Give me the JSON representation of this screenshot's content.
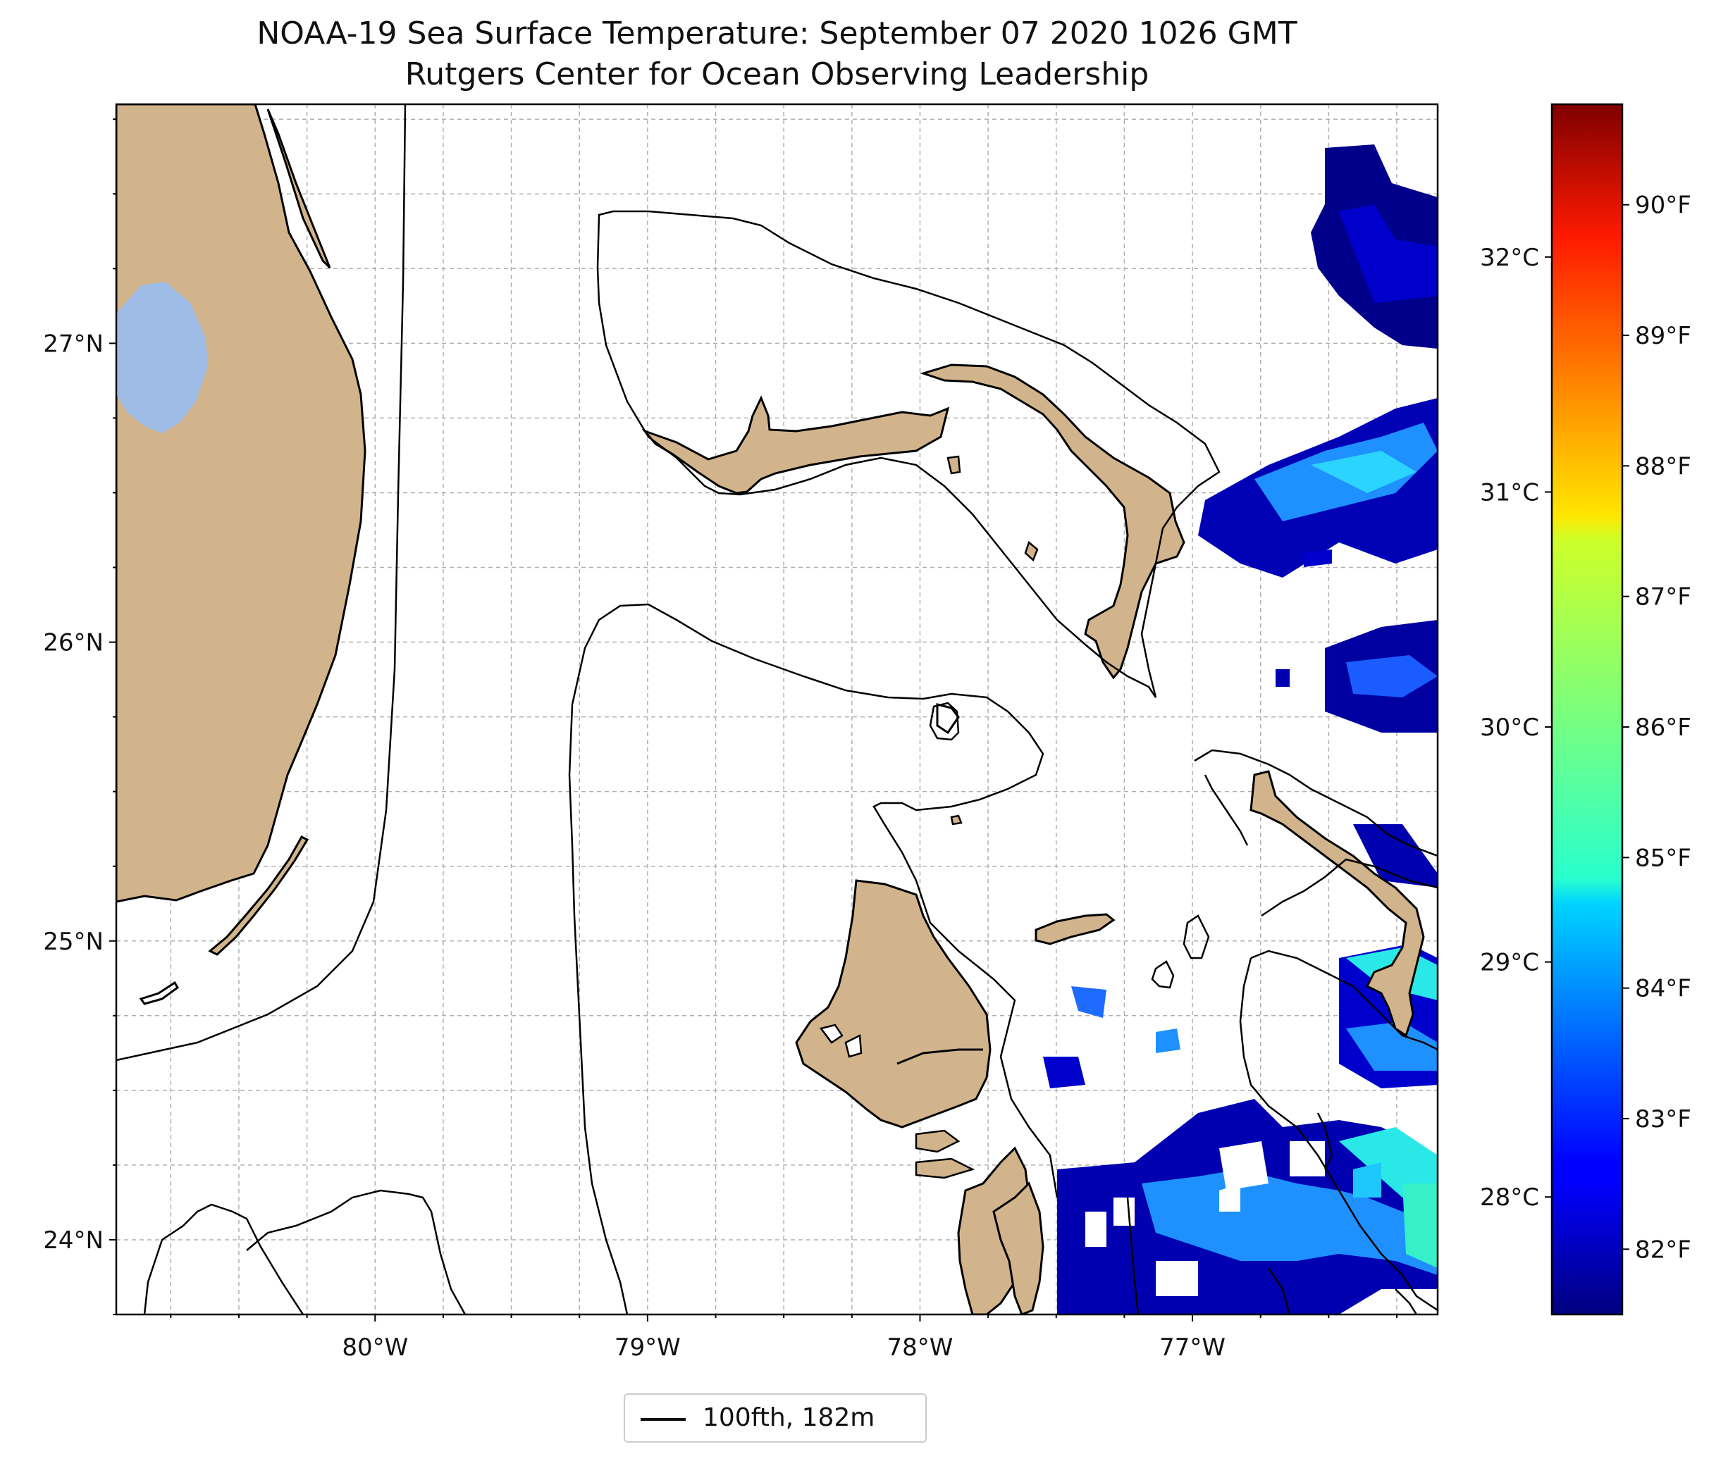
{
  "title_line1": "NOAA-19 Sea Surface Temperature: September 07 2020 1026 GMT",
  "title_line2": "Rutgers Center for Ocean Observing Leadership",
  "map": {
    "lon_range": [
      -80.95,
      -76.1
    ],
    "lat_range": [
      23.75,
      27.8
    ],
    "lat_ticks": [
      "27°N",
      "26°N",
      "25°N",
      "24°N"
    ],
    "lat_values": [
      27,
      26,
      25,
      24
    ],
    "lon_ticks": [
      "80°W",
      "79°W",
      "78°W",
      "77°W"
    ],
    "lon_values": [
      -80,
      -79,
      -78,
      -77
    ],
    "gridlines": true
  },
  "colorbar": {
    "celsius_ticks": [
      "32°C",
      "31°C",
      "30°C",
      "29°C",
      "28°C"
    ],
    "celsius_values": [
      32,
      31,
      30,
      29,
      28
    ],
    "fahrenheit_ticks": [
      "90°F",
      "89°F",
      "88°F",
      "87°F",
      "86°F",
      "85°F",
      "84°F",
      "83°F",
      "82°F"
    ],
    "fahrenheit_values": [
      90,
      89,
      88,
      87,
      86,
      85,
      84,
      83,
      82
    ],
    "colormap": "jet",
    "range_celsius": [
      27.5,
      32.65
    ]
  },
  "legend": {
    "label": "100fth, 182m"
  },
  "colors": {
    "land": "#d2b48c",
    "lake": "#9dbbe5",
    "ocean": "#ffffff",
    "contour": "#000000"
  }
}
